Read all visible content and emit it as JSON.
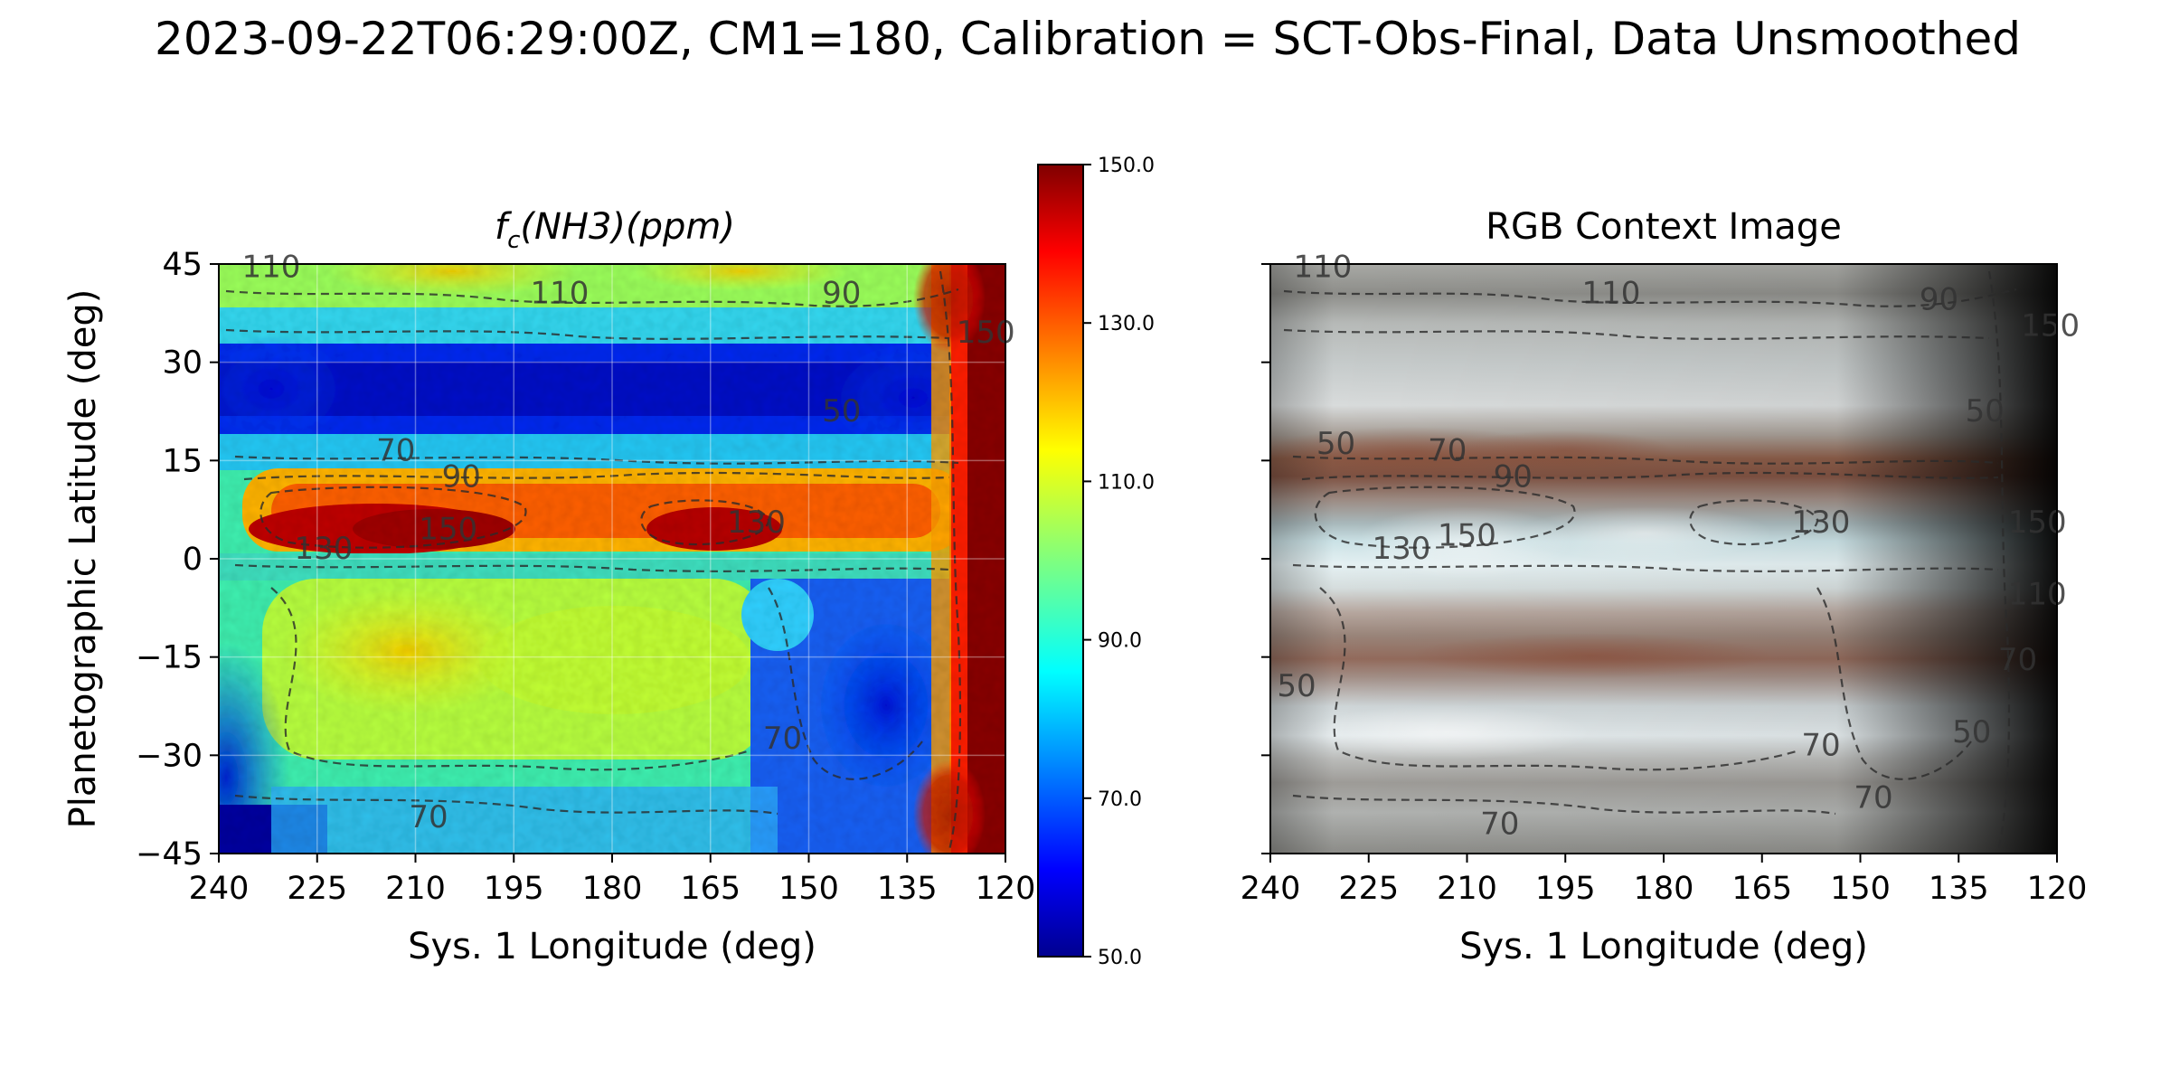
{
  "figure": {
    "suptitle": "2023-09-22T06:29:00Z, CM1=180, Calibration = SCT-Obs-Final, Data Unsmoothed"
  },
  "chart_data": [
    {
      "type": "heatmap",
      "title": "f̄c(NH3)(ppm)",
      "title_parts": {
        "f": "f",
        "bar": "¯",
        "sub": "c",
        "rest": "(NH3)(ppm)"
      },
      "xlabel": "Sys. 1 Longitude (deg)",
      "ylabel": "Planetographic Latitude (deg)",
      "xlim": [
        240,
        120
      ],
      "ylim": [
        -45,
        45
      ],
      "xticks": [
        240,
        225,
        210,
        195,
        180,
        165,
        150,
        135,
        120
      ],
      "yticks": [
        45,
        30,
        15,
        0,
        -15,
        -30,
        -45
      ],
      "ytick_labels": [
        "45",
        "30",
        "15",
        "0",
        "−15",
        "−30",
        "−45"
      ],
      "colormap": "jet",
      "grid": true,
      "colorbar": {
        "range": [
          50,
          150
        ],
        "ticks": [
          150,
          130,
          110,
          90,
          70,
          50
        ],
        "tick_labels": [
          "150.0",
          "130.0",
          "110.0",
          "90.0",
          "70.0",
          "50.0"
        ]
      },
      "contour_levels": [
        50,
        70,
        90,
        110,
        130,
        150
      ],
      "contour_labels": [
        {
          "text": "110",
          "lon": 232,
          "lat": 43
        },
        {
          "text": "110",
          "lon": 188,
          "lat": 39
        },
        {
          "text": "90",
          "lon": 145,
          "lat": 39
        },
        {
          "text": "150",
          "lon": 123,
          "lat": 33
        },
        {
          "text": "70",
          "lon": 213,
          "lat": 15
        },
        {
          "text": "90",
          "lon": 203,
          "lat": 11
        },
        {
          "text": "50",
          "lon": 145,
          "lat": 21
        },
        {
          "text": "150",
          "lon": 205,
          "lat": 3
        },
        {
          "text": "130",
          "lon": 224,
          "lat": 0
        },
        {
          "text": "130",
          "lon": 158,
          "lat": 4
        },
        {
          "text": "70",
          "lon": 154,
          "lat": -29
        },
        {
          "text": "70",
          "lon": 208,
          "lat": -41
        }
      ],
      "notes": ""
    },
    {
      "type": "heatmap",
      "title": "RGB Context Image",
      "xlabel": "Sys. 1 Longitude (deg)",
      "xlim": [
        240,
        120
      ],
      "ylim": [
        -45,
        45
      ],
      "xticks": [
        240,
        225,
        210,
        195,
        180,
        165,
        150,
        135,
        120
      ],
      "contour_labels": [
        {
          "text": "110",
          "lon": 232,
          "lat": 43
        },
        {
          "text": "110",
          "lon": 188,
          "lat": 39
        },
        {
          "text": "90",
          "lon": 138,
          "lat": 38
        },
        {
          "text": "50",
          "lon": 131,
          "lat": 21
        },
        {
          "text": "150",
          "lon": 121,
          "lat": 34
        },
        {
          "text": "50",
          "lon": 230,
          "lat": 16
        },
        {
          "text": "70",
          "lon": 213,
          "lat": 15
        },
        {
          "text": "90",
          "lon": 203,
          "lat": 11
        },
        {
          "text": "150",
          "lon": 210,
          "lat": 2
        },
        {
          "text": "130",
          "lon": 220,
          "lat": 0
        },
        {
          "text": "130",
          "lon": 156,
          "lat": 4
        },
        {
          "text": "150",
          "lon": 123,
          "lat": 4
        },
        {
          "text": "110",
          "lon": 123,
          "lat": -7
        },
        {
          "text": "70",
          "lon": 126,
          "lat": -17
        },
        {
          "text": "50",
          "lon": 236,
          "lat": -21
        },
        {
          "text": "70",
          "lon": 156,
          "lat": -30
        },
        {
          "text": "50",
          "lon": 133,
          "lat": -28
        },
        {
          "text": "70",
          "lon": 148,
          "lat": -38
        },
        {
          "text": "70",
          "lon": 205,
          "lat": -42
        }
      ]
    }
  ]
}
